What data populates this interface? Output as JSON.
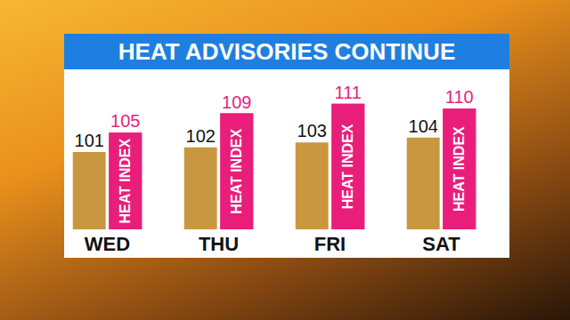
{
  "chart_data": {
    "type": "bar",
    "title": "HEAT ADVISORIES CONTINUE",
    "categories": [
      "WED",
      "THU",
      "FRI",
      "SAT"
    ],
    "series": [
      {
        "color": "#c9973f",
        "values": [
          101,
          102,
          103,
          104
        ]
      },
      {
        "name": "HEAT INDEX",
        "color": "#e91e7a",
        "values": [
          105,
          109,
          111,
          110
        ]
      }
    ],
    "ylim": [
      85,
      115
    ],
    "yticks": [
      85,
      115
    ],
    "grid": false,
    "data_labels": true,
    "tick_labels": "x"
  }
}
